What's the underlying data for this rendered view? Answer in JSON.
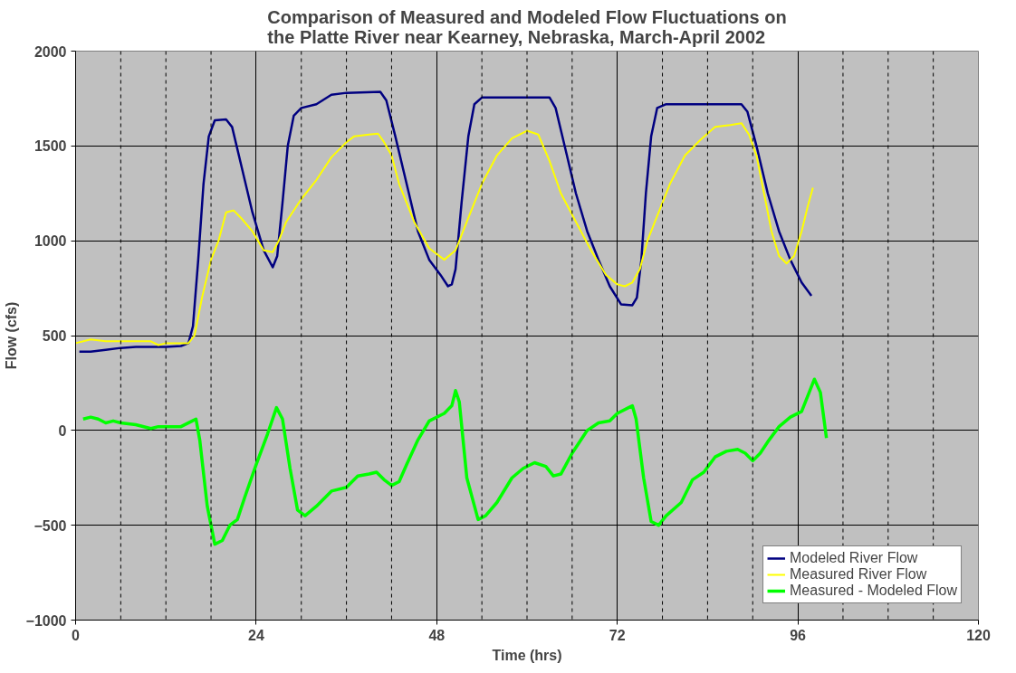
{
  "chart_data": {
    "type": "line",
    "title": "Comparison of Measured and Modeled Flow Fluctuations on\nthe Platte River near Kearney, Nebraska, March-April 2002",
    "xlabel": "Time (hrs)",
    "ylabel": "Flow (cfs)",
    "xlim": [
      0,
      120
    ],
    "xticks": [
      0,
      24,
      48,
      72,
      96,
      120
    ],
    "ylim": [
      -1000,
      2000
    ],
    "yticks": [
      -1000,
      -500,
      0,
      500,
      1000,
      1500,
      2000
    ],
    "grid": true,
    "legend": "bottom right",
    "marker": "none",
    "line_style": "solid",
    "ref_lines": [
      {
        "axis": "x",
        "value": 6,
        "line_style": "dashed",
        "color": "#000000"
      },
      {
        "axis": "x",
        "value": 12,
        "line_style": "dashed",
        "color": "#000000"
      },
      {
        "axis": "x",
        "value": 18,
        "line_style": "dashed",
        "color": "#000000"
      },
      {
        "axis": "x",
        "value": 30,
        "line_style": "dashed",
        "color": "#000000"
      },
      {
        "axis": "x",
        "value": 36,
        "line_style": "dashed",
        "color": "#000000"
      },
      {
        "axis": "x",
        "value": 42,
        "line_style": "dashed",
        "color": "#000000"
      },
      {
        "axis": "x",
        "value": 54,
        "line_style": "dashed",
        "color": "#000000"
      },
      {
        "axis": "x",
        "value": 60,
        "line_style": "dashed",
        "color": "#000000"
      },
      {
        "axis": "x",
        "value": 66,
        "line_style": "dashed",
        "color": "#000000"
      },
      {
        "axis": "x",
        "value": 78,
        "line_style": "dashed",
        "color": "#000000"
      },
      {
        "axis": "x",
        "value": 84,
        "line_style": "dashed",
        "color": "#000000"
      },
      {
        "axis": "x",
        "value": 90,
        "line_style": "dashed",
        "color": "#000000"
      },
      {
        "axis": "x",
        "value": 102,
        "line_style": "dashed",
        "color": "#000000"
      },
      {
        "axis": "x",
        "value": 108,
        "line_style": "dashed",
        "color": "#000000"
      },
      {
        "axis": "x",
        "value": 114,
        "line_style": "dashed",
        "color": "#000000"
      }
    ],
    "series": [
      {
        "name": "Modeled River Flow",
        "color": "#000080",
        "x": [
          0.5,
          2,
          4,
          6,
          8,
          12,
          14,
          15,
          15.6,
          16.3,
          17,
          17.7,
          18.5,
          20,
          20.8,
          22,
          23.5,
          25,
          26.2,
          26.8,
          27.5,
          28.2,
          29,
          30,
          32,
          34,
          36,
          40.5,
          41.3,
          42.5,
          44,
          45.5,
          47,
          48.5,
          49.5,
          50,
          50.5,
          51.3,
          52.2,
          53,
          54,
          63,
          63.8,
          65,
          66.5,
          68,
          69.5,
          71,
          72.5,
          74,
          74.6,
          75.2,
          75.8,
          76.5,
          77.3,
          78.5,
          88.5,
          89.3,
          90.5,
          92,
          93.5,
          95,
          96.5,
          97.8
        ],
        "values": [
          415,
          415,
          425,
          435,
          440,
          440,
          445,
          460,
          550,
          900,
          1300,
          1550,
          1635,
          1640,
          1600,
          1400,
          1150,
          950,
          860,
          920,
          1200,
          1500,
          1660,
          1700,
          1720,
          1770,
          1780,
          1785,
          1740,
          1550,
          1300,
          1050,
          900,
          820,
          760,
          770,
          850,
          1200,
          1550,
          1720,
          1755,
          1755,
          1700,
          1500,
          1250,
          1050,
          900,
          760,
          665,
          660,
          700,
          900,
          1250,
          1550,
          1700,
          1720,
          1720,
          1680,
          1500,
          1250,
          1050,
          900,
          780,
          710
        ]
      },
      {
        "name": "Measured River Flow",
        "color": "#ffff00",
        "x": [
          0,
          2,
          4,
          6,
          10,
          11,
          12,
          15,
          15.8,
          16.8,
          18,
          19,
          20,
          21,
          22,
          23.5,
          25,
          26.2,
          27,
          28,
          30,
          32,
          34,
          36,
          37,
          39,
          40.2,
          41,
          42,
          43,
          45,
          47,
          49,
          50.5,
          52,
          54,
          56,
          58,
          60,
          61.5,
          63,
          64.5,
          66.5,
          68.5,
          70.5,
          72,
          73,
          74,
          75,
          76,
          77,
          79,
          81,
          83,
          85,
          87,
          88.5,
          89.5,
          90.5,
          91.5,
          92.5,
          93.5,
          94.5,
          95.5,
          96.5,
          97.3,
          98
        ],
        "values": [
          460,
          480,
          470,
          470,
          470,
          450,
          460,
          460,
          500,
          700,
          900,
          1000,
          1150,
          1160,
          1120,
          1050,
          950,
          940,
          1000,
          1100,
          1220,
          1320,
          1440,
          1520,
          1550,
          1560,
          1565,
          1520,
          1450,
          1300,
          1100,
          960,
          900,
          950,
          1100,
          1300,
          1450,
          1540,
          1580,
          1560,
          1420,
          1250,
          1100,
          950,
          820,
          770,
          760,
          780,
          850,
          1000,
          1100,
          1300,
          1450,
          1530,
          1600,
          1610,
          1620,
          1560,
          1450,
          1250,
          1050,
          920,
          880,
          920,
          1050,
          1180,
          1280
        ]
      },
      {
        "name": "Measured - Modeled Flow",
        "color": "#00ff00",
        "x": [
          1,
          2,
          3,
          4,
          5,
          6,
          8,
          10,
          11,
          14,
          15.5,
          16,
          16.5,
          17.5,
          18.5,
          19.5,
          20.5,
          21.5,
          22.5,
          24,
          25.5,
          26.7,
          27.5,
          28.5,
          29.5,
          30.5,
          32,
          34,
          36,
          37.5,
          39,
          40,
          41,
          42,
          43,
          44,
          45.5,
          47,
          49,
          50,
          50.5,
          51,
          52,
          53.5,
          54.5,
          56,
          58,
          59.5,
          61,
          62.5,
          63.5,
          64.5,
          66,
          68,
          69.5,
          71,
          72,
          73.5,
          74,
          74.5,
          75.5,
          76.5,
          77.5,
          78.5,
          80.5,
          82,
          83.5,
          85,
          86.5,
          88,
          89,
          90,
          91,
          92,
          93.5,
          95,
          96.5,
          97.5,
          98.2,
          99,
          99.8
        ],
        "values": [
          60,
          70,
          60,
          40,
          50,
          40,
          30,
          10,
          20,
          20,
          50,
          60,
          -50,
          -400,
          -600,
          -580,
          -500,
          -470,
          -350,
          -180,
          -20,
          120,
          60,
          -200,
          -420,
          -450,
          -400,
          -320,
          -300,
          -240,
          -230,
          -220,
          -260,
          -290,
          -270,
          -180,
          -50,
          50,
          90,
          130,
          210,
          150,
          -250,
          -470,
          -450,
          -380,
          -250,
          -200,
          -170,
          -190,
          -240,
          -230,
          -120,
          0,
          40,
          50,
          90,
          120,
          130,
          60,
          -250,
          -480,
          -500,
          -450,
          -380,
          -260,
          -220,
          -140,
          -110,
          -100,
          -120,
          -160,
          -120,
          -60,
          20,
          70,
          100,
          200,
          270,
          200,
          -40
        ]
      }
    ]
  }
}
